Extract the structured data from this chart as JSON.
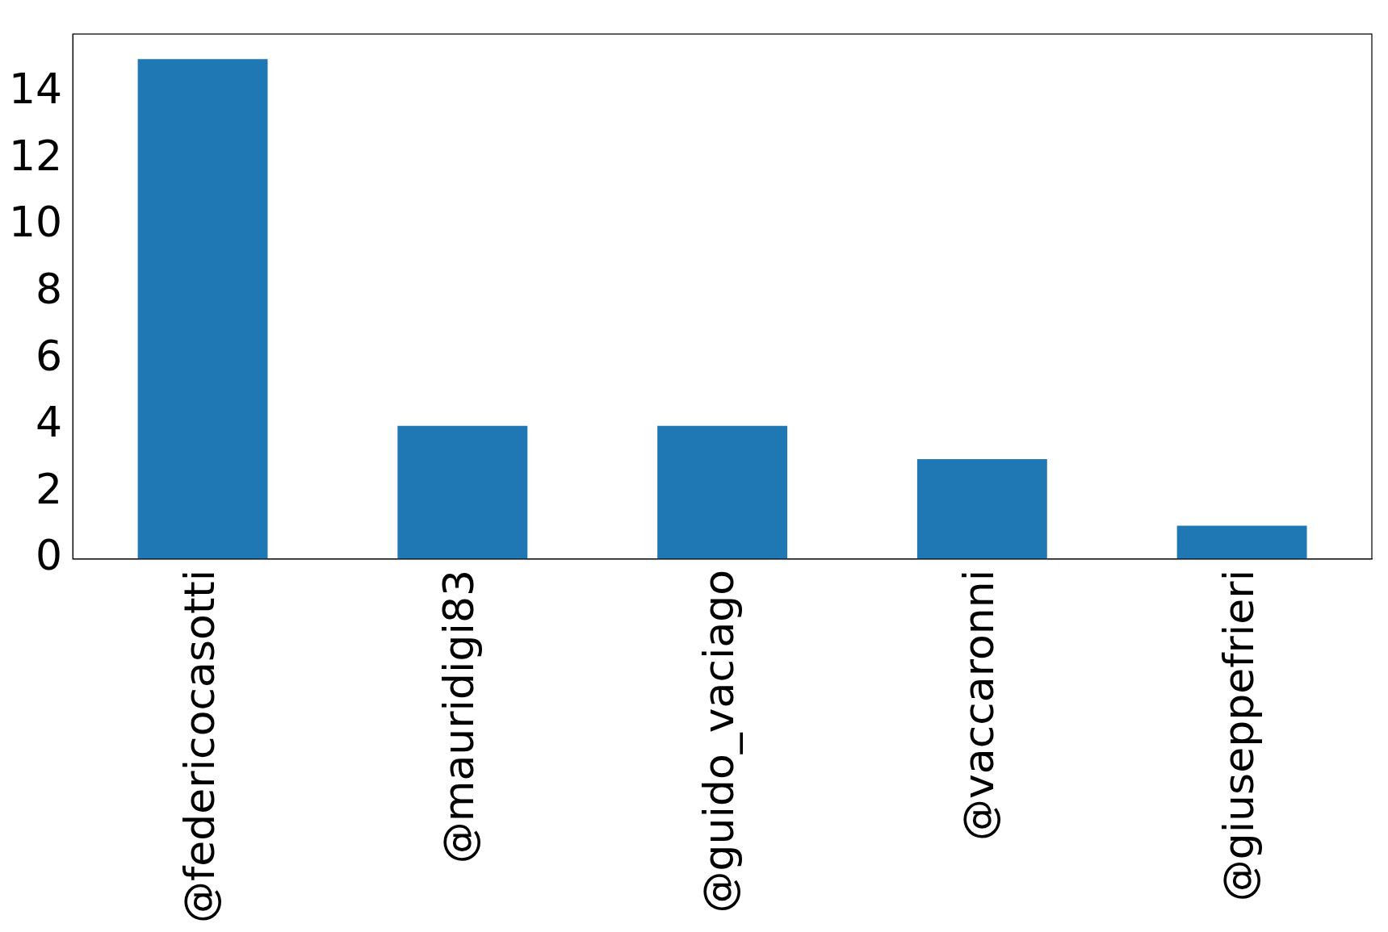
{
  "chart_data": {
    "type": "bar",
    "categories": [
      "@federicocasotti",
      "@mauridigi83",
      "@guido_vaciago",
      "@vaccaronni",
      "@giuseppefrieri"
    ],
    "values": [
      15,
      4,
      4,
      3,
      1
    ],
    "color": "#1f77b4",
    "ylim": [
      0,
      15.75
    ],
    "yticks": [
      0,
      2,
      4,
      6,
      8,
      10,
      12,
      14
    ],
    "grid": false,
    "legend": false
  }
}
